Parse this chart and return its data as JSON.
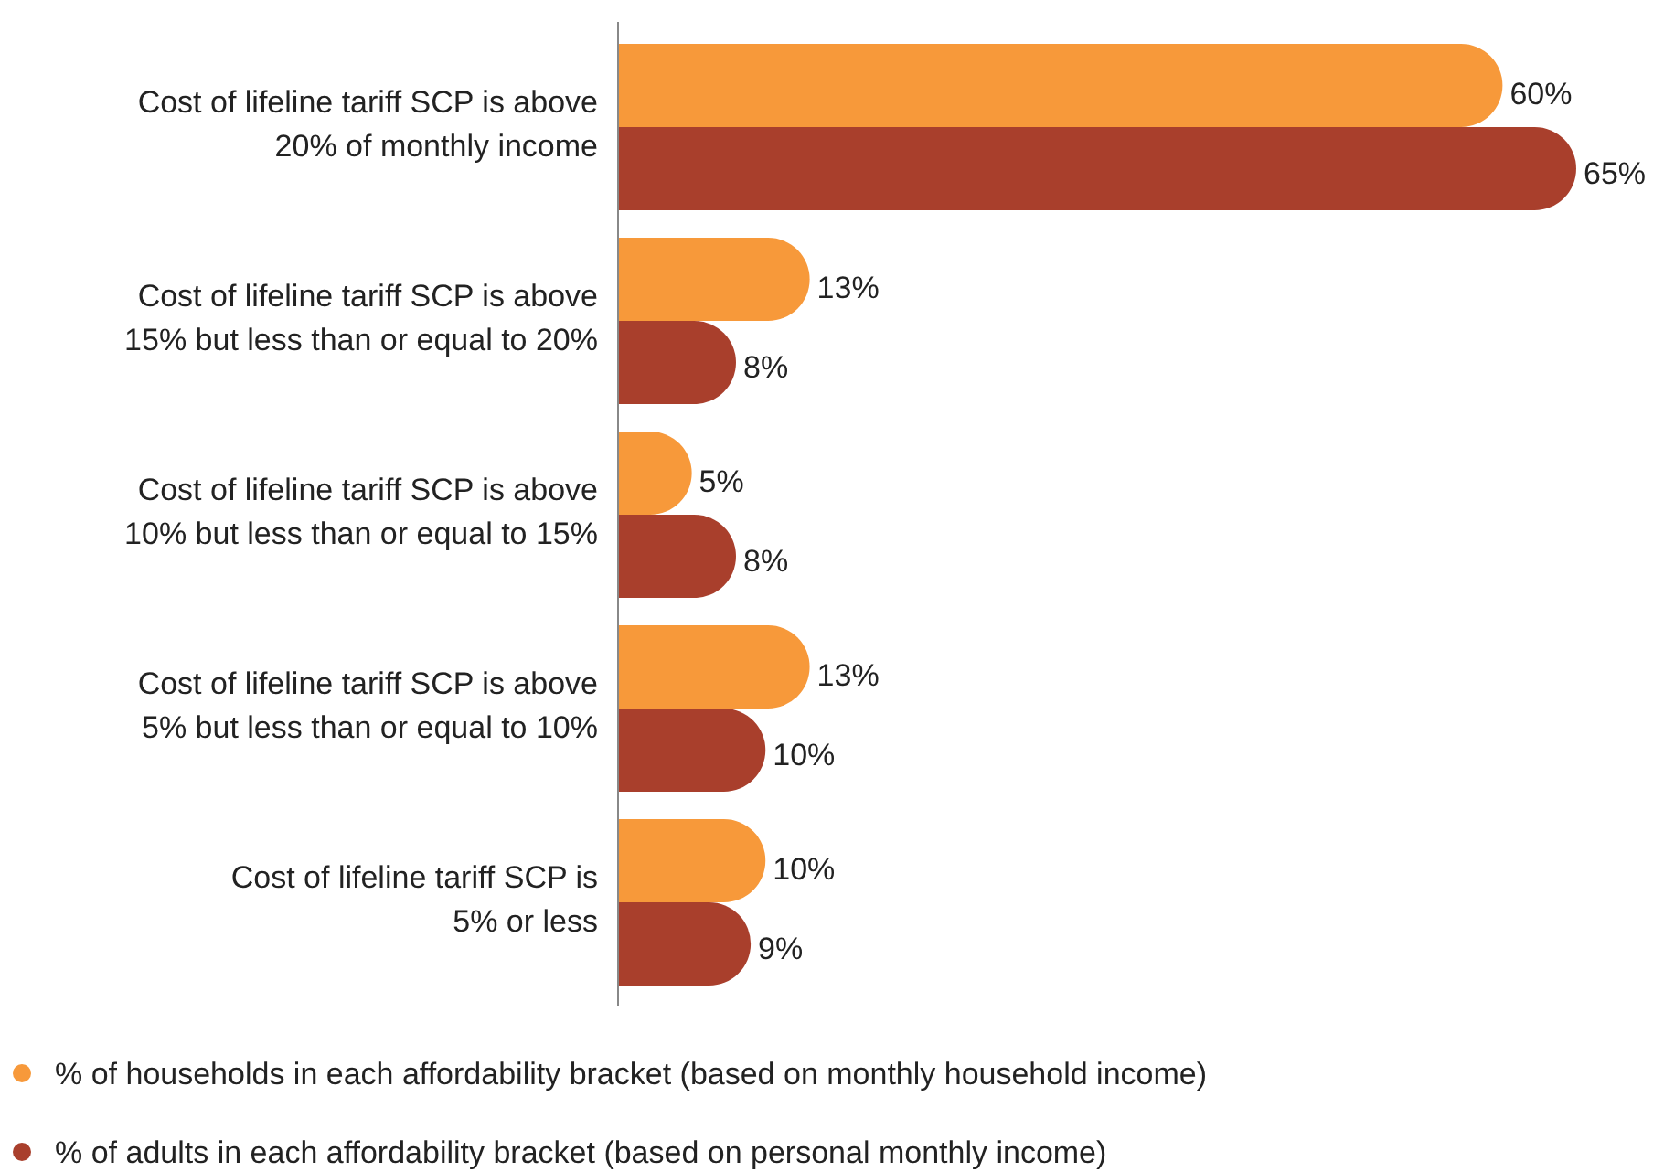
{
  "chart_data": {
    "type": "bar",
    "orientation": "horizontal",
    "legend": "bottom",
    "categories": [
      "Cost of lifeline tariff SCP is above\n20% of monthly income",
      "Cost of lifeline tariff SCP is above\n15% but less than or equal to 20%",
      "Cost of lifeline tariff SCP is above\n10% but less than or equal to 15%",
      "Cost of lifeline tariff SCP is above\n5% but less than or equal to 10%",
      "Cost of lifeline tariff SCP is\n5% or less"
    ],
    "series": [
      {
        "name": "% of households in each affordability bracket (based on monthly household income)",
        "color": "#f7993a",
        "values": [
          60,
          13,
          5,
          13,
          10
        ],
        "value_labels": [
          "60%",
          "13%",
          "5%",
          "13%",
          "10%"
        ]
      },
      {
        "name": "% of adults in each affordability bracket (based on personal monthly income)",
        "color": "#a93f2c",
        "values": [
          65,
          8,
          8,
          10,
          9
        ],
        "value_labels": [
          "65%",
          "8%",
          "8%",
          "10%",
          "9%"
        ]
      }
    ]
  }
}
